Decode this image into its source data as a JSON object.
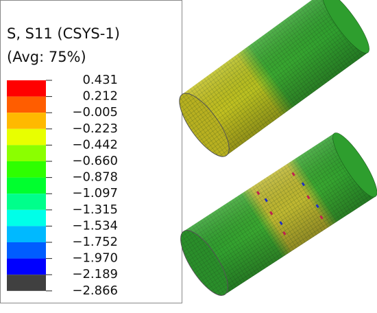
{
  "legend": {
    "title": [
      "S, S11 (CSYS-1)",
      "(Avg: 75%)"
    ],
    "labels": [
      "0.431",
      "0.212",
      "−0.005",
      "−0.223",
      "−0.442",
      "−0.660",
      "−0.878",
      "−1.097",
      "−1.315",
      "−1.534",
      "−1.752",
      "−1.970",
      "−2.189",
      "−2.866"
    ],
    "colors": [
      "#ff0000",
      "#ff5d00",
      "#ffb900",
      "#e8ff00",
      "#8bff00",
      "#2eff00",
      "#00ff2e",
      "#00ff8b",
      "#00ffe8",
      "#00b9ff",
      "#005dff",
      "#0000ff",
      "#404040"
    ]
  }
}
